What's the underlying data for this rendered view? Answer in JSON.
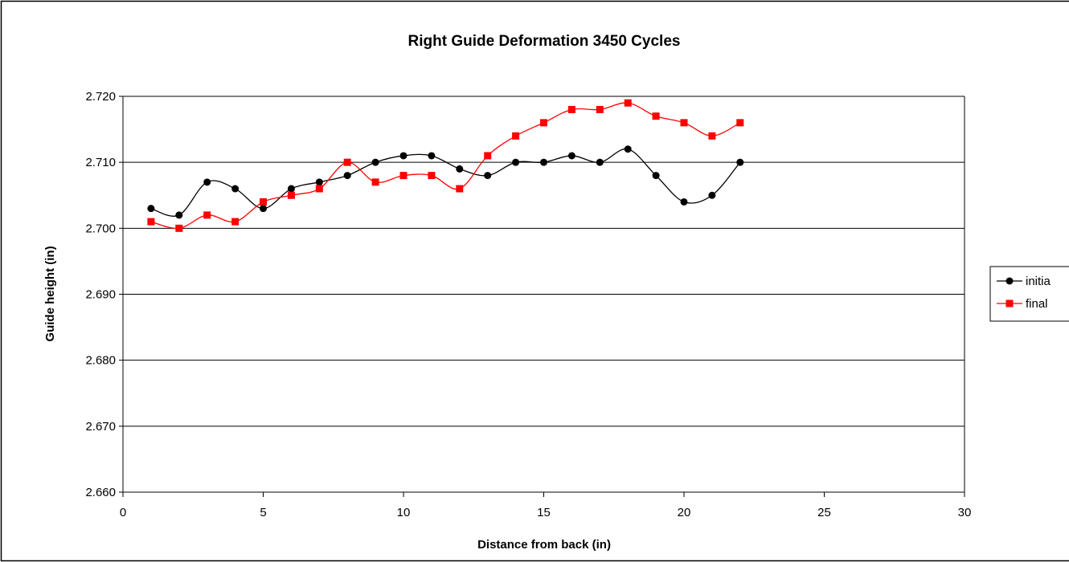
{
  "chart_data": {
    "type": "line",
    "title": "Right Guide Deformation 3450 Cycles",
    "xlabel": "Distance from back (in)",
    "ylabel": "Guide height (in)",
    "xlim": [
      0,
      30
    ],
    "ylim": [
      2.66,
      2.72
    ],
    "xticks": [
      "0",
      "5",
      "10",
      "15",
      "20",
      "25",
      "30"
    ],
    "yticks": [
      "2.660",
      "2.670",
      "2.680",
      "2.690",
      "2.700",
      "2.710",
      "2.720"
    ],
    "grid": "horizontal",
    "smooth": true,
    "legend_position": "right",
    "x": [
      1,
      2,
      3,
      4,
      5,
      6,
      7,
      8,
      9,
      10,
      11,
      12,
      13,
      14,
      15,
      16,
      17,
      18,
      19,
      20,
      21,
      22
    ],
    "series": [
      {
        "name": "initial",
        "legend_label": "initia",
        "color": "#000000",
        "marker": "circle",
        "values": [
          2.703,
          2.702,
          2.707,
          2.706,
          2.703,
          2.706,
          2.707,
          2.708,
          2.71,
          2.711,
          2.711,
          2.709,
          2.708,
          2.71,
          2.71,
          2.711,
          2.71,
          2.712,
          2.708,
          2.704,
          2.705,
          2.71
        ]
      },
      {
        "name": "final",
        "legend_label": "final",
        "color": "#ff0000",
        "marker": "square",
        "values": [
          2.701,
          2.7,
          2.702,
          2.701,
          2.704,
          2.705,
          2.706,
          2.71,
          2.707,
          2.708,
          2.708,
          2.706,
          2.711,
          2.714,
          2.716,
          2.718,
          2.718,
          2.719,
          2.717,
          2.716,
          2.714,
          2.716
        ]
      }
    ]
  }
}
